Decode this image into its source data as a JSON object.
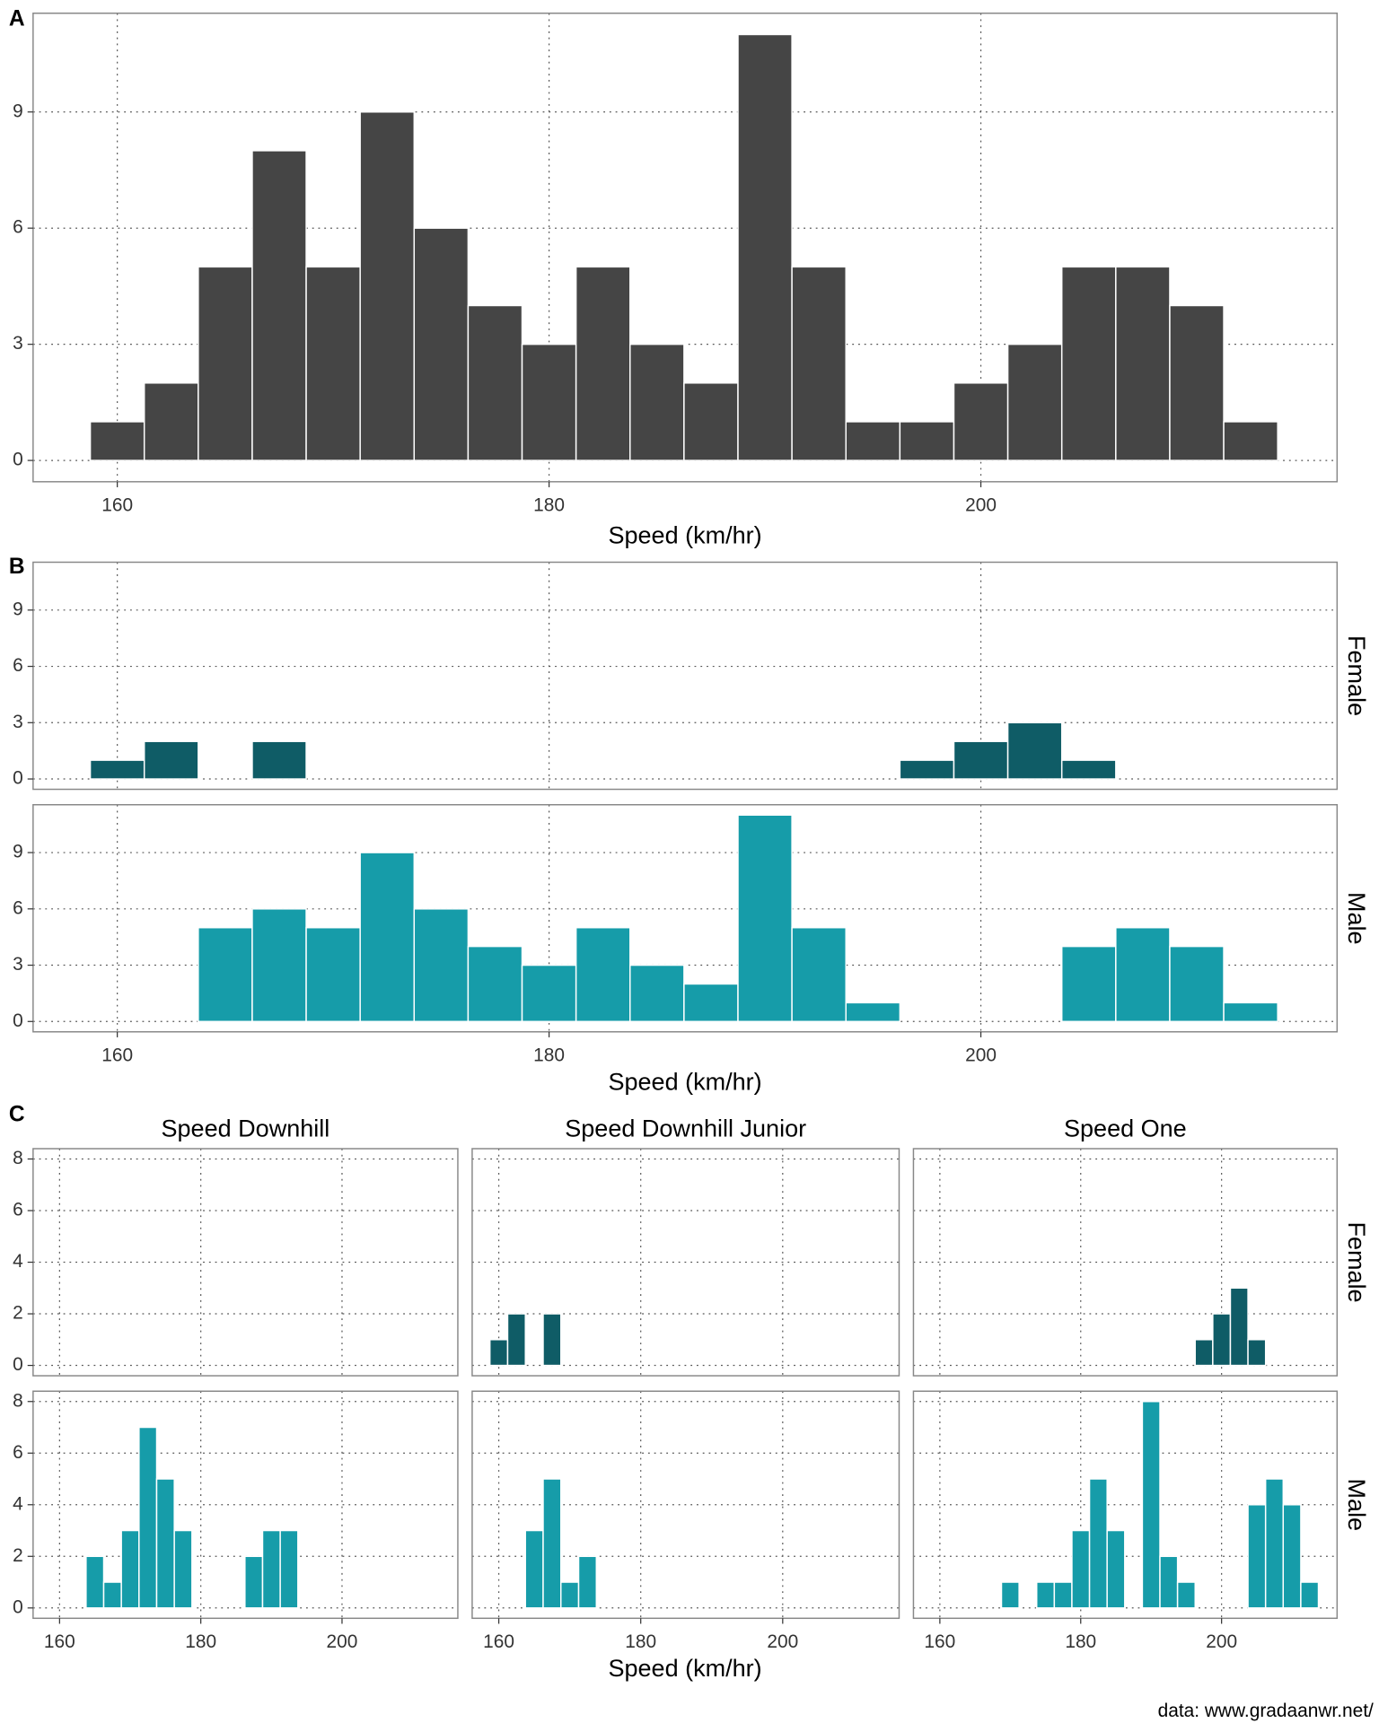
{
  "chart_data": [
    {
      "type": "histogram",
      "label": "A",
      "xlabel": "Speed (km/hr)",
      "color": "#454545",
      "bins": [
        158.75,
        161.25,
        163.75,
        166.25,
        168.75,
        171.25,
        173.75,
        176.25,
        178.75,
        181.25,
        183.75,
        186.25,
        188.75,
        191.25,
        193.75,
        196.25,
        198.75,
        201.25,
        203.75,
        206.25,
        208.75,
        211.25,
        213.75
      ],
      "values": [
        1,
        2,
        5,
        8,
        5,
        9,
        6,
        4,
        3,
        5,
        3,
        2,
        11,
        5,
        1,
        1,
        2,
        3,
        5,
        5,
        4,
        1
      ],
      "xlim": [
        156.1,
        216.5
      ],
      "ylim": [
        -0.55,
        11.55
      ],
      "xticks": [
        160,
        180,
        200
      ],
      "yticks": [
        0,
        3,
        6,
        9
      ],
      "grid": true
    },
    {
      "type": "histogram",
      "label": "B",
      "xlabel": "Speed (km/hr)",
      "bins": [
        158.75,
        161.25,
        163.75,
        166.25,
        168.75,
        171.25,
        173.75,
        176.25,
        178.75,
        181.25,
        183.75,
        186.25,
        188.75,
        191.25,
        193.75,
        196.25,
        198.75,
        201.25,
        203.75,
        206.25,
        208.75,
        211.25,
        213.75
      ],
      "series": [
        {
          "name": "Female",
          "color": "#0f5c66",
          "values": [
            1,
            2,
            0,
            2,
            0,
            0,
            0,
            0,
            0,
            0,
            0,
            0,
            0,
            0,
            0,
            1,
            2,
            3,
            1,
            0,
            0,
            0
          ]
        },
        {
          "name": "Male",
          "color": "#169ca9",
          "values": [
            0,
            0,
            5,
            6,
            5,
            9,
            6,
            4,
            3,
            5,
            3,
            2,
            11,
            5,
            1,
            0,
            0,
            0,
            4,
            5,
            4,
            1
          ]
        }
      ],
      "xlim": [
        156.1,
        216.5
      ],
      "ylim": [
        -0.55,
        11.55
      ],
      "xticks": [
        160,
        180,
        200
      ],
      "yticks": [
        0,
        3,
        6,
        9
      ],
      "grid": true
    },
    {
      "type": "histogram",
      "label": "C",
      "xlabel": "Speed (km/hr)",
      "columns": [
        "Speed Downhill",
        "Speed Downhill Junior",
        "Speed One"
      ],
      "bins": [
        158.75,
        161.25,
        163.75,
        166.25,
        168.75,
        171.25,
        173.75,
        176.25,
        178.75,
        181.25,
        183.75,
        186.25,
        188.75,
        191.25,
        193.75,
        196.25,
        198.75,
        201.25,
        203.75,
        206.25,
        208.75,
        211.25,
        213.75
      ],
      "series": [
        {
          "name": "Female",
          "color": "#0f5c66",
          "values": [
            [
              0,
              0,
              0,
              0,
              0,
              0,
              0,
              0,
              0,
              0,
              0,
              0,
              0,
              0,
              0,
              0,
              0,
              0,
              0,
              0,
              0,
              0
            ],
            [
              1,
              2,
              0,
              2,
              0,
              0,
              0,
              0,
              0,
              0,
              0,
              0,
              0,
              0,
              0,
              0,
              0,
              0,
              0,
              0,
              0,
              0
            ],
            [
              0,
              0,
              0,
              0,
              0,
              0,
              0,
              0,
              0,
              0,
              0,
              0,
              0,
              0,
              0,
              1,
              2,
              3,
              1,
              0,
              0,
              0
            ]
          ]
        },
        {
          "name": "Male",
          "color": "#169ca9",
          "values": [
            [
              0,
              0,
              2,
              1,
              3,
              7,
              5,
              3,
              0,
              0,
              0,
              2,
              3,
              3,
              0,
              0,
              0,
              0,
              0,
              0,
              0,
              0
            ],
            [
              0,
              0,
              3,
              5,
              1,
              2,
              0,
              0,
              0,
              0,
              0,
              0,
              0,
              0,
              0,
              0,
              0,
              0,
              0,
              0,
              0,
              0
            ],
            [
              0,
              0,
              0,
              0,
              1,
              0,
              1,
              1,
              3,
              5,
              3,
              0,
              8,
              2,
              1,
              0,
              0,
              0,
              4,
              5,
              4,
              1
            ]
          ]
        }
      ],
      "xlim": [
        156.25,
        216.4
      ],
      "ylim": [
        -0.4,
        8.4
      ],
      "xticks": [
        160,
        180,
        200
      ],
      "yticks": [
        0,
        2,
        4,
        6,
        8
      ],
      "grid": true
    }
  ],
  "source": "data: www.gradaanwr.net/"
}
